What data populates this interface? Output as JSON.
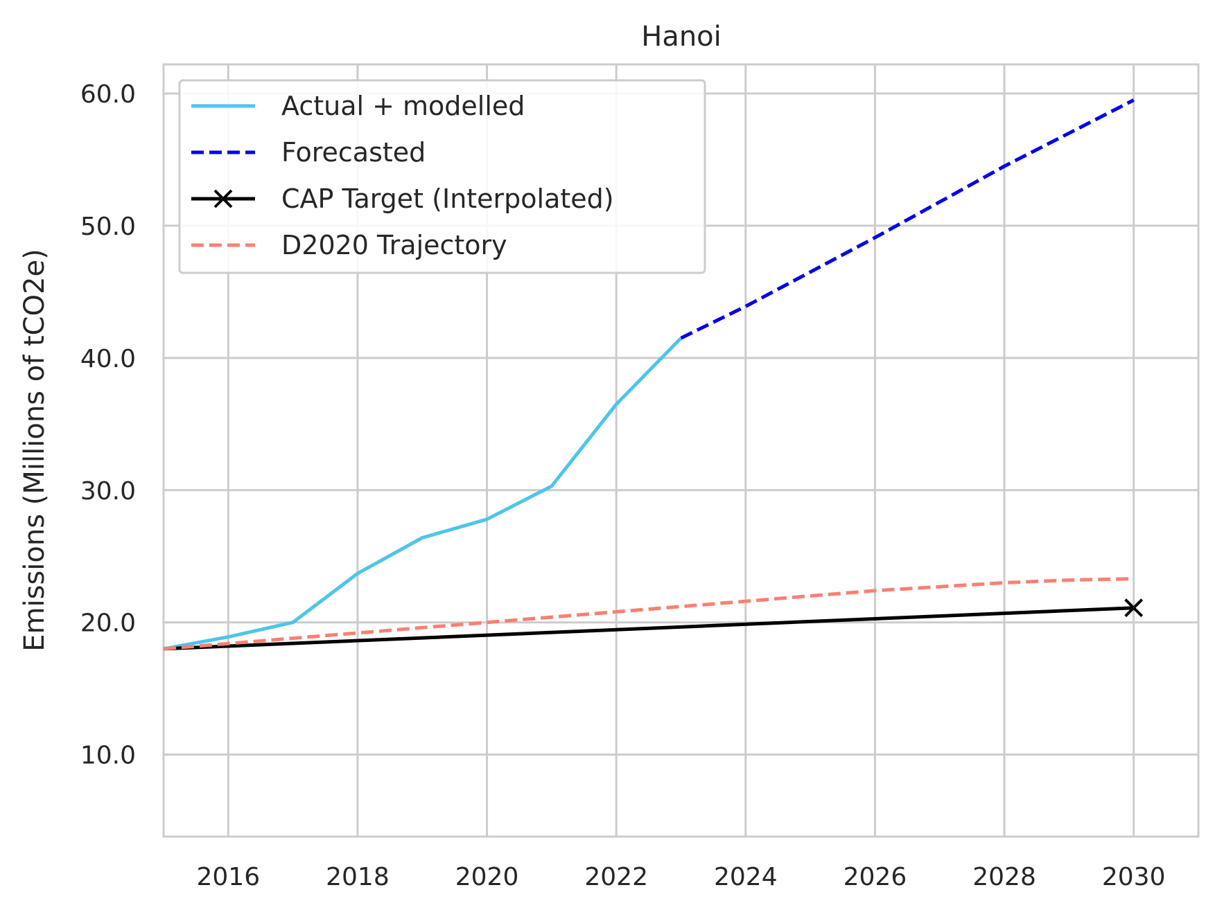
{
  "chart_data": {
    "type": "line",
    "title": "Hanoi",
    "xlabel": "",
    "ylabel": "Emissions (Millions of tCO2e)",
    "xlim": [
      2015,
      2031
    ],
    "ylim": [
      3.8,
      62.2
    ],
    "x_ticks": [
      2016,
      2018,
      2020,
      2022,
      2024,
      2026,
      2028,
      2030
    ],
    "x_tick_labels": [
      "2016",
      "2018",
      "2020",
      "2022",
      "2024",
      "2026",
      "2028",
      "2030"
    ],
    "y_ticks": [
      10,
      20,
      30,
      40,
      50,
      60
    ],
    "y_tick_labels": [
      "10.0",
      "20.0",
      "30.0",
      "40.0",
      "50.0",
      "60.0"
    ],
    "grid": true,
    "legend": "top-left",
    "series": [
      {
        "name": "Actual + modelled",
        "color": "#4EC5E9",
        "style": "solid",
        "x": [
          2015,
          2016,
          2017,
          2018,
          2019,
          2020,
          2021,
          2022,
          2023
        ],
        "y": [
          18.0,
          18.9,
          20.0,
          23.7,
          26.4,
          27.8,
          30.3,
          36.5,
          41.5
        ]
      },
      {
        "name": "Forecasted",
        "color": "#0000EE",
        "style": "dashed",
        "x": [
          2023,
          2024,
          2025,
          2026,
          2027,
          2028,
          2029,
          2030
        ],
        "y": [
          41.5,
          43.9,
          46.5,
          49.1,
          51.8,
          54.5,
          57.0,
          59.5
        ]
      },
      {
        "name": "CAP Target (Interpolated)",
        "color": "#000000",
        "style": "solid",
        "marker": "x",
        "x": [
          2015,
          2030
        ],
        "y": [
          18.0,
          21.1
        ]
      },
      {
        "name": "D2020 Trajectory",
        "color": "#FA8072",
        "style": "dashed",
        "x": [
          2015,
          2016,
          2017,
          2018,
          2019,
          2020,
          2021,
          2022,
          2023,
          2024,
          2025,
          2026,
          2027,
          2028,
          2029,
          2030
        ],
        "y": [
          18.0,
          18.4,
          18.8,
          19.2,
          19.6,
          20.0,
          20.4,
          20.8,
          21.2,
          21.6,
          22.0,
          22.4,
          22.7,
          23.0,
          23.2,
          23.3
        ]
      }
    ]
  }
}
